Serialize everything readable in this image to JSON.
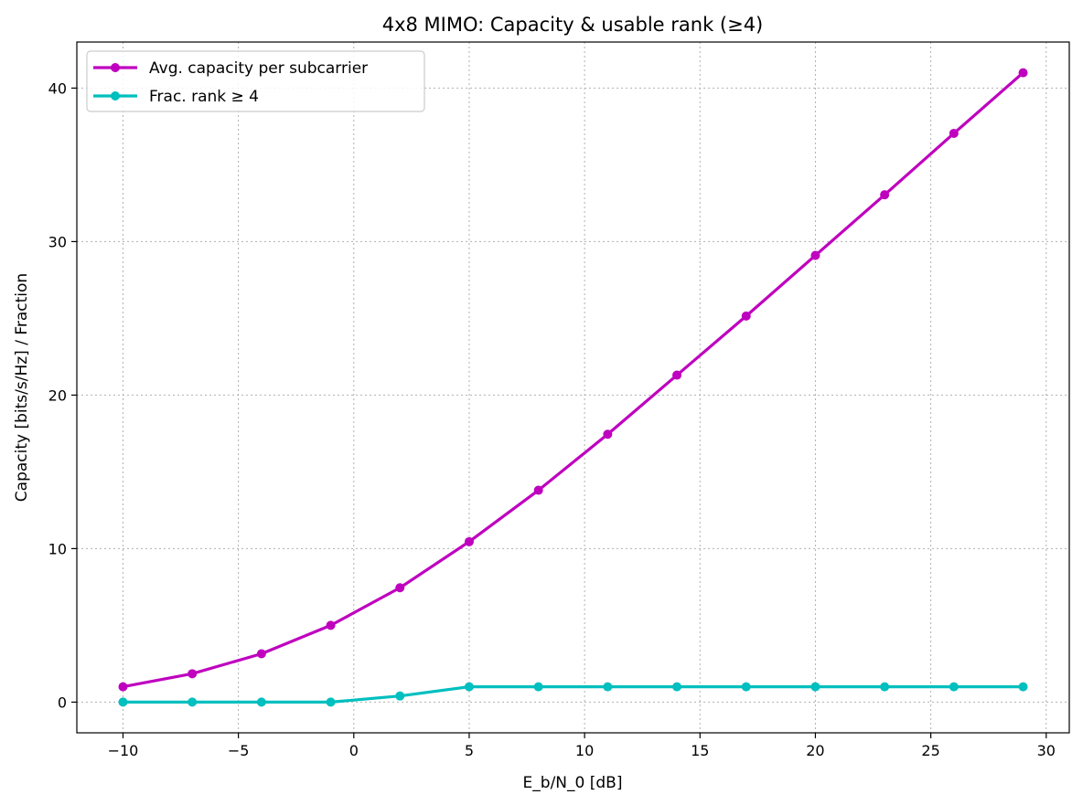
{
  "chart_data": {
    "type": "line",
    "title": "4x8 MIMO: Capacity & usable rank (≥4)",
    "xlabel": "E_b/N_0 [dB]",
    "ylabel": "Capacity [bits/s/Hz] / Fraction",
    "xlim": [
      -12,
      31
    ],
    "ylim": [
      -2,
      43
    ],
    "xticks": [
      -10,
      -5,
      0,
      5,
      10,
      15,
      20,
      25,
      30
    ],
    "xtick_labels": [
      "−10",
      "−5",
      "0",
      "5",
      "10",
      "15",
      "20",
      "25",
      "30"
    ],
    "yticks": [
      0,
      10,
      20,
      30,
      40
    ],
    "ytick_labels": [
      "0",
      "10",
      "20",
      "30",
      "40"
    ],
    "grid": true,
    "legend_position": "top-left",
    "x": [
      -10,
      -7,
      -4,
      -1,
      2,
      5,
      8,
      11,
      14,
      17,
      20,
      23,
      26,
      29
    ],
    "series": [
      {
        "name": "Avg. capacity per subcarrier",
        "color": "#bf00bf",
        "values": [
          1.0,
          1.85,
          3.15,
          5.0,
          7.45,
          10.45,
          13.8,
          17.45,
          21.3,
          25.15,
          29.1,
          33.05,
          37.05,
          41.0
        ]
      },
      {
        "name": "Frac. rank ≥ 4",
        "color": "#00bfbf",
        "values": [
          0.0,
          0.0,
          0.0,
          0.0,
          0.4,
          1.0,
          1.0,
          1.0,
          1.0,
          1.0,
          1.0,
          1.0,
          1.0,
          1.0
        ]
      }
    ]
  }
}
